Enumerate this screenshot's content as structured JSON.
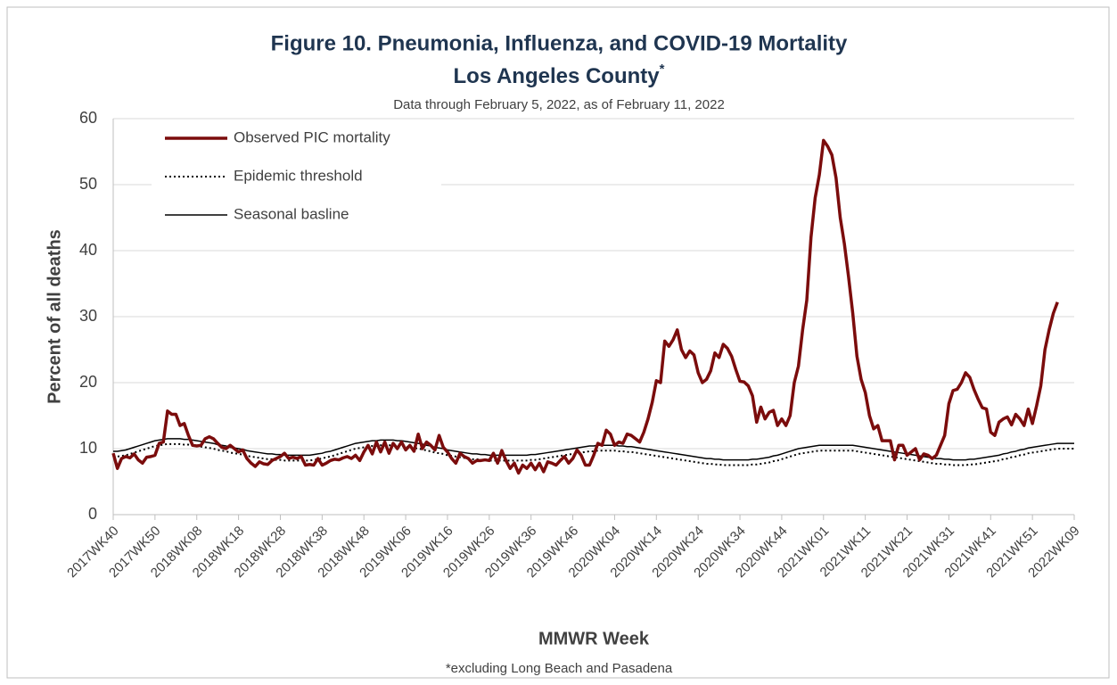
{
  "chart_data": {
    "type": "line",
    "title": "Figure 10. Pneumonia, Influenza, and COVID-19 Mortality",
    "title_line2": "Los Angeles County",
    "title_marker": "*",
    "subtitle": "Data through  February 5, 2022, as of February 11, 2022",
    "x_label": "MMWR Week",
    "y_label": "Percent of all deaths",
    "footnote": "*excluding  Long Beach and Pasadena",
    "ylim": [
      0,
      60
    ],
    "yticks": [
      0,
      10,
      20,
      30,
      40,
      50,
      60
    ],
    "grid": true,
    "legend": "top-left",
    "categories": [
      "2017WK40",
      null,
      null,
      null,
      null,
      null,
      null,
      null,
      null,
      null,
      "2017WK50",
      null,
      null,
      null,
      null,
      null,
      null,
      null,
      null,
      null,
      "2018WK08",
      null,
      null,
      null,
      null,
      null,
      null,
      null,
      null,
      null,
      "2018WK18",
      null,
      null,
      null,
      null,
      null,
      null,
      null,
      null,
      null,
      "2018WK28",
      null,
      null,
      null,
      null,
      null,
      null,
      null,
      null,
      null,
      "2018WK38",
      null,
      null,
      null,
      null,
      null,
      null,
      null,
      null,
      null,
      "2018WK48",
      null,
      null,
      null,
      null,
      null,
      null,
      null,
      null,
      null,
      "2019WK06",
      null,
      null,
      null,
      null,
      null,
      null,
      null,
      null,
      null,
      "2019WK16",
      null,
      null,
      null,
      null,
      null,
      null,
      null,
      null,
      null,
      "2019WK26",
      null,
      null,
      null,
      null,
      null,
      null,
      null,
      null,
      null,
      "2019WK36",
      null,
      null,
      null,
      null,
      null,
      null,
      null,
      null,
      null,
      "2019WK46",
      null,
      null,
      null,
      null,
      null,
      null,
      null,
      null,
      null,
      "2020WK04",
      null,
      null,
      null,
      null,
      null,
      null,
      null,
      null,
      null,
      "2020WK14",
      null,
      null,
      null,
      null,
      null,
      null,
      null,
      null,
      null,
      "2020WK24",
      null,
      null,
      null,
      null,
      null,
      null,
      null,
      null,
      null,
      "2020WK34",
      null,
      null,
      null,
      null,
      null,
      null,
      null,
      null,
      null,
      "2020WK44",
      null,
      null,
      null,
      null,
      null,
      null,
      null,
      null,
      null,
      "2021WK01",
      null,
      null,
      null,
      null,
      null,
      null,
      null,
      null,
      null,
      "2021WK11",
      null,
      null,
      null,
      null,
      null,
      null,
      null,
      null,
      null,
      "2021WK21",
      null,
      null,
      null,
      null,
      null,
      null,
      null,
      null,
      null,
      "2021WK31",
      null,
      null,
      null,
      null,
      null,
      null,
      null,
      null,
      null,
      "2021WK41",
      null,
      null,
      null,
      null,
      null,
      null,
      null,
      null,
      null,
      "2021WK51",
      null,
      null,
      null,
      null,
      null,
      null,
      null,
      null,
      null,
      "2022WK09"
    ],
    "series": [
      {
        "name": "Observed PIC mortality",
        "color": "#7b0c0c",
        "line_style": "solid",
        "values": [
          9.3,
          7.0,
          8.5,
          8.8,
          8.6,
          9.2,
          8.3,
          7.8,
          8.7,
          8.8,
          9.0,
          10.8,
          11.0,
          15.7,
          15.2,
          15.2,
          13.5,
          13.8,
          12.0,
          10.5,
          10.4,
          10.5,
          11.5,
          11.8,
          11.5,
          10.8,
          10.2,
          10.0,
          10.5,
          10.0,
          9.5,
          9.8,
          8.5,
          7.8,
          7.3,
          8.0,
          7.7,
          7.6,
          8.2,
          8.5,
          8.8,
          9.3,
          8.5,
          8.7,
          8.5,
          8.8,
          7.5,
          7.6,
          7.5,
          8.5,
          7.5,
          7.8,
          8.2,
          8.4,
          8.3,
          8.6,
          8.8,
          8.5,
          9.0,
          8.2,
          9.5,
          10.5,
          9.2,
          11.0,
          9.5,
          11.0,
          9.3,
          10.8,
          10.0,
          11.0,
          9.8,
          10.5,
          9.6,
          12.2,
          10.0,
          11.0,
          10.5,
          9.8,
          12.0,
          10.2,
          9.5,
          8.5,
          7.8,
          9.3,
          8.8,
          8.5,
          7.8,
          8.2,
          8.2,
          8.3,
          8.2,
          9.3,
          7.8,
          9.7,
          8.2,
          7.0,
          7.8,
          6.3,
          7.5,
          7.0,
          7.8,
          6.8,
          7.8,
          6.5,
          8.0,
          7.8,
          7.5,
          8.2,
          8.8,
          7.8,
          8.5,
          9.8,
          9.0,
          7.5,
          7.5,
          9.0,
          10.8,
          10.5,
          12.8,
          12.2,
          10.5,
          11.0,
          10.8,
          12.2,
          12.0,
          11.5,
          11.0,
          12.5,
          14.5,
          17.0,
          20.3,
          20.0,
          26.3,
          25.5,
          26.5,
          28.0,
          25.0,
          23.8,
          24.8,
          24.2,
          21.5,
          20.0,
          20.5,
          21.8,
          24.5,
          23.8,
          25.8,
          25.2,
          24.0,
          22.0,
          20.2,
          20.1,
          19.5,
          18.0,
          14.0,
          16.3,
          14.5,
          15.5,
          15.8,
          13.5,
          14.5,
          13.5,
          15.0,
          20.0,
          22.5,
          28.0,
          32.5,
          42.0,
          48.0,
          51.5,
          56.7,
          55.8,
          54.5,
          51.0,
          45.0,
          41.0,
          36.0,
          30.5,
          24.0,
          20.5,
          18.5,
          15.0,
          13.0,
          13.5,
          11.2,
          11.2,
          11.2,
          8.3,
          10.5,
          10.5,
          9.0,
          9.5,
          10.0,
          8.3,
          9.2,
          9.0,
          8.5,
          9.0,
          10.5,
          12.0,
          16.8,
          18.8,
          19.0,
          20.0,
          21.5,
          20.8,
          19.0,
          17.5,
          16.2,
          16.0,
          12.5,
          12.0,
          14.0,
          14.5,
          14.8,
          13.6,
          15.2,
          14.5,
          13.5,
          16.0,
          13.8,
          16.5,
          19.5,
          25.0,
          28.0,
          30.5,
          32.2,
          null,
          null,
          null,
          null
        ]
      },
      {
        "name": "Epidemic threshold",
        "color": "#000000",
        "line_style": "dotted",
        "values": [
          8.8,
          8.8,
          8.9,
          9.0,
          9.2,
          9.4,
          9.6,
          9.8,
          10.0,
          10.2,
          10.4,
          10.5,
          10.6,
          10.7,
          10.7,
          10.7,
          10.7,
          10.6,
          10.6,
          10.5,
          10.4,
          10.3,
          10.2,
          10.1,
          10.0,
          9.8,
          9.7,
          9.6,
          9.4,
          9.3,
          9.2,
          9.1,
          8.9,
          8.8,
          8.7,
          8.6,
          8.5,
          8.4,
          8.4,
          8.3,
          8.3,
          8.2,
          8.2,
          8.2,
          8.2,
          8.2,
          8.2,
          8.2,
          8.3,
          8.4,
          8.5,
          8.7,
          8.8,
          9.0,
          9.2,
          9.4,
          9.6,
          9.8,
          10.0,
          10.1,
          10.2,
          10.3,
          10.4,
          10.4,
          10.5,
          10.5,
          10.5,
          10.5,
          10.4,
          10.4,
          10.3,
          10.2,
          10.1,
          10.0,
          9.9,
          9.7,
          9.6,
          9.4,
          9.3,
          9.2,
          9.0,
          8.9,
          8.8,
          8.7,
          8.6,
          8.5,
          8.4,
          8.4,
          8.3,
          8.3,
          8.2,
          8.2,
          8.2,
          8.2,
          8.2,
          8.2,
          8.2,
          8.2,
          8.2,
          8.2,
          8.3,
          8.3,
          8.4,
          8.5,
          8.6,
          8.7,
          8.8,
          8.9,
          9.0,
          9.1,
          9.2,
          9.3,
          9.4,
          9.5,
          9.6,
          9.6,
          9.7,
          9.7,
          9.7,
          9.7,
          9.7,
          9.6,
          9.6,
          9.5,
          9.5,
          9.4,
          9.3,
          9.2,
          9.1,
          9.0,
          8.9,
          8.8,
          8.7,
          8.6,
          8.5,
          8.4,
          8.3,
          8.2,
          8.1,
          8.0,
          7.9,
          7.8,
          7.7,
          7.7,
          7.6,
          7.6,
          7.5,
          7.5,
          7.5,
          7.5,
          7.5,
          7.5,
          7.5,
          7.6,
          7.6,
          7.7,
          7.8,
          7.9,
          8.1,
          8.2,
          8.4,
          8.6,
          8.8,
          9.0,
          9.2,
          9.3,
          9.4,
          9.5,
          9.6,
          9.7,
          9.7,
          9.7,
          9.7,
          9.7,
          9.7,
          9.7,
          9.7,
          9.7,
          9.6,
          9.5,
          9.4,
          9.3,
          9.2,
          9.1,
          9.0,
          8.9,
          8.8,
          8.7,
          8.6,
          8.5,
          8.4,
          8.3,
          8.2,
          8.1,
          8.0,
          7.9,
          7.8,
          7.7,
          7.7,
          7.6,
          7.6,
          7.5,
          7.5,
          7.5,
          7.5,
          7.6,
          7.6,
          7.7,
          7.8,
          7.9,
          8.0,
          8.1,
          8.2,
          8.4,
          8.5,
          8.7,
          8.8,
          9.0,
          9.1,
          9.3,
          9.4,
          9.5,
          9.6,
          9.7,
          9.8,
          9.9,
          10.0,
          10.0,
          10.0,
          10.0,
          10.0
        ]
      },
      {
        "name": "Seasonal basline",
        "color": "#000000",
        "line_style": "solid",
        "values": [
          9.6,
          9.6,
          9.7,
          9.8,
          10.0,
          10.2,
          10.4,
          10.6,
          10.8,
          11.0,
          11.2,
          11.3,
          11.4,
          11.5,
          11.5,
          11.5,
          11.5,
          11.4,
          11.4,
          11.3,
          11.2,
          11.1,
          11.0,
          10.9,
          10.8,
          10.6,
          10.5,
          10.4,
          10.2,
          10.1,
          10.0,
          9.9,
          9.7,
          9.6,
          9.5,
          9.4,
          9.3,
          9.2,
          9.2,
          9.1,
          9.1,
          9.0,
          9.0,
          9.0,
          9.0,
          9.0,
          9.0,
          9.0,
          9.1,
          9.2,
          9.3,
          9.5,
          9.6,
          9.8,
          10.0,
          10.2,
          10.4,
          10.6,
          10.8,
          10.9,
          11.0,
          11.1,
          11.2,
          11.2,
          11.3,
          11.3,
          11.3,
          11.3,
          11.2,
          11.2,
          11.1,
          11.0,
          10.9,
          10.8,
          10.7,
          10.5,
          10.4,
          10.2,
          10.1,
          10.0,
          9.8,
          9.7,
          9.6,
          9.5,
          9.4,
          9.3,
          9.2,
          9.2,
          9.1,
          9.1,
          9.0,
          9.0,
          9.0,
          9.0,
          9.0,
          9.0,
          9.0,
          9.0,
          9.0,
          9.0,
          9.1,
          9.1,
          9.2,
          9.3,
          9.4,
          9.5,
          9.6,
          9.7,
          9.8,
          9.9,
          10.0,
          10.1,
          10.2,
          10.3,
          10.4,
          10.4,
          10.5,
          10.5,
          10.5,
          10.5,
          10.5,
          10.4,
          10.4,
          10.3,
          10.3,
          10.2,
          10.1,
          10.0,
          9.9,
          9.8,
          9.7,
          9.6,
          9.5,
          9.4,
          9.3,
          9.2,
          9.1,
          9.0,
          8.9,
          8.8,
          8.7,
          8.6,
          8.5,
          8.5,
          8.4,
          8.4,
          8.3,
          8.3,
          8.3,
          8.3,
          8.3,
          8.3,
          8.3,
          8.4,
          8.4,
          8.5,
          8.6,
          8.7,
          8.9,
          9.0,
          9.2,
          9.4,
          9.6,
          9.8,
          10.0,
          10.1,
          10.2,
          10.3,
          10.4,
          10.5,
          10.5,
          10.5,
          10.5,
          10.5,
          10.5,
          10.5,
          10.5,
          10.5,
          10.4,
          10.3,
          10.2,
          10.1,
          10.0,
          9.9,
          9.8,
          9.7,
          9.6,
          9.5,
          9.4,
          9.3,
          9.2,
          9.1,
          9.0,
          8.9,
          8.8,
          8.7,
          8.6,
          8.5,
          8.5,
          8.4,
          8.4,
          8.3,
          8.3,
          8.3,
          8.3,
          8.4,
          8.4,
          8.5,
          8.6,
          8.7,
          8.8,
          8.9,
          9.0,
          9.2,
          9.3,
          9.5,
          9.6,
          9.8,
          9.9,
          10.1,
          10.2,
          10.3,
          10.4,
          10.5,
          10.6,
          10.7,
          10.8,
          10.8,
          10.8,
          10.8,
          10.8
        ]
      }
    ]
  }
}
